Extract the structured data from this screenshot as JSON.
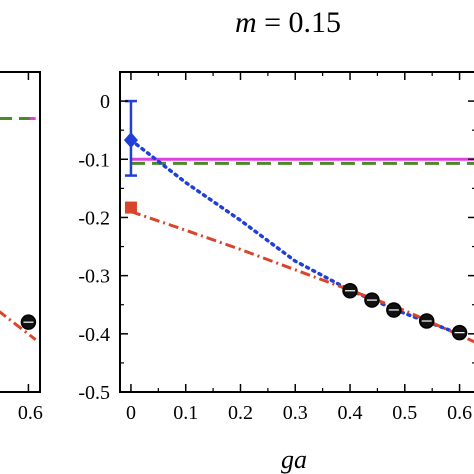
{
  "page": {
    "title_var": "m",
    "title_rest": " = 0.15",
    "xlabel": "ga"
  },
  "chart_data": [
    {
      "panel": "left",
      "type": "line",
      "xticks": [
        "0.6"
      ],
      "x_visible_range": [
        0.39,
        0.68
      ],
      "ylim": [
        -0.5,
        0.05
      ],
      "grid": false,
      "series": [
        {
          "style": "dashed",
          "color": "#4a8a2a",
          "x": [
            0.39,
            0.65
          ],
          "y": [
            -0.03,
            -0.03
          ]
        },
        {
          "style": "solid",
          "color": "#e040e0",
          "x": [
            0.61,
            0.65
          ],
          "y": [
            -0.03,
            -0.03
          ]
        },
        {
          "style": "dash-dot",
          "color": "#d9452b",
          "x": [
            0.39,
            0.65
          ],
          "y": [
            -0.36,
            -0.41
          ]
        },
        {
          "style": "markers",
          "color": "#000000",
          "x": [
            0.6
          ],
          "y": [
            -0.38
          ]
        }
      ]
    },
    {
      "panel": "right",
      "type": "line",
      "xlabel": "ga",
      "xlim": [
        -0.02,
        0.63
      ],
      "ylim": [
        -0.5,
        0.05
      ],
      "xticks": [
        "0",
        "0.1",
        "0.2",
        "0.3",
        "0.4",
        "0.5",
        "0.6"
      ],
      "yticks": [
        "0",
        "-0.1",
        "-0.2",
        "-0.3",
        "-0.4",
        "-0.5"
      ],
      "grid": false,
      "series": [
        {
          "style": "solid",
          "color": "#e040e0",
          "x": [
            0.0,
            0.63
          ],
          "y": [
            -0.1,
            -0.1
          ]
        },
        {
          "style": "dashed",
          "color": "#4a8a2a",
          "x": [
            0.0,
            0.63
          ],
          "y": [
            -0.107,
            -0.107
          ]
        },
        {
          "style": "dotted",
          "color": "#1f3fd8",
          "x": [
            0.0,
            0.1,
            0.2,
            0.3,
            0.4,
            0.5,
            0.6
          ],
          "y": [
            -0.067,
            -0.14,
            -0.205,
            -0.275,
            -0.325,
            -0.365,
            -0.4
          ]
        },
        {
          "style": "dash-dot",
          "color": "#d9452b",
          "x": [
            0.0,
            0.1,
            0.2,
            0.3,
            0.4,
            0.5,
            0.63
          ],
          "y": [
            -0.19,
            -0.222,
            -0.255,
            -0.29,
            -0.325,
            -0.36,
            -0.415
          ]
        },
        {
          "style": "diamond",
          "color": "#1f3fd8",
          "x": [
            0.0
          ],
          "y": [
            -0.067
          ],
          "yerr": [
            [
              -0.128,
              0.0
            ]
          ]
        },
        {
          "style": "square",
          "color": "#d9452b",
          "x": [
            0.0
          ],
          "y": [
            -0.183
          ]
        },
        {
          "style": "markers",
          "color": "#000000",
          "x": [
            0.4,
            0.44,
            0.48,
            0.54,
            0.6
          ],
          "y": [
            -0.326,
            -0.342,
            -0.359,
            -0.378,
            -0.398
          ]
        }
      ]
    }
  ]
}
